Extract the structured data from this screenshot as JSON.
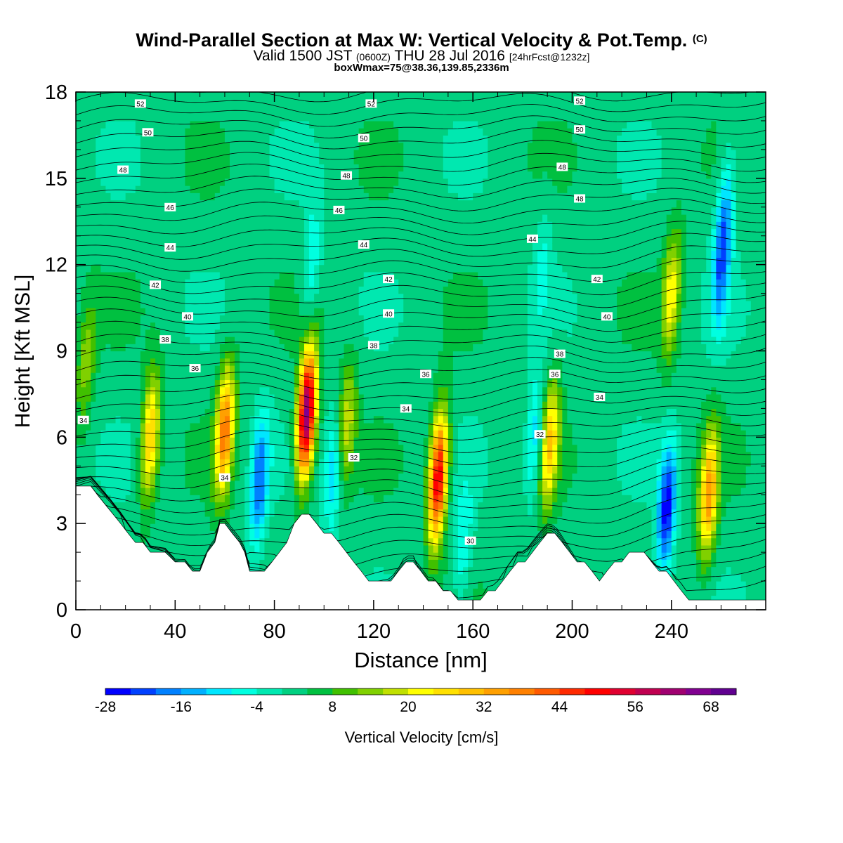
{
  "header": {
    "title": "Wind-Parallel Section at Max W: Vertical Velocity & Pot.Temp.",
    "title_mark": "(C)",
    "subtitle_pre": "Valid 1500 JST",
    "subtitle_zulu": "(0600Z)",
    "subtitle_mid": "THU 28 Jul 2016",
    "subtitle_fcst": "[24hrFcst@1232z]",
    "subtitle2": "boxWmax=75@38.36,139.85,2336m"
  },
  "chart_data": {
    "type": "heatmap",
    "title": "Wind-Parallel Section at Max W: Vertical Velocity & Pot.Temp.",
    "xlabel": "Distance [nm]",
    "ylabel": "Height [Kft MSL]",
    "xlim": [
      0,
      278
    ],
    "ylim": [
      0,
      18
    ],
    "xticks": [
      "0",
      "40",
      "80",
      "120",
      "160",
      "200",
      "240"
    ],
    "yticks": [
      "0",
      "3",
      "6",
      "9",
      "12",
      "15",
      "18"
    ],
    "colorbar": {
      "label": "Vertical Velocity [cm/s]",
      "tick_labels": [
        "-28",
        "-16",
        "-4",
        "8",
        "20",
        "32",
        "44",
        "56",
        "68"
      ],
      "levels_min": -28,
      "levels_max": 72,
      "level_step": 4,
      "colors": [
        "#0000ff",
        "#0040ff",
        "#0080ff",
        "#00b0ff",
        "#00e6ff",
        "#00ffe0",
        "#00e8b0",
        "#00d080",
        "#00c040",
        "#40c000",
        "#80d000",
        "#c0e000",
        "#ffff00",
        "#ffe000",
        "#ffc000",
        "#ffa000",
        "#ff8000",
        "#ff5a00",
        "#ff2a00",
        "#ff0000",
        "#e00030",
        "#c00050",
        "#a00070",
        "#800090",
        "#600090"
      ]
    },
    "terrain_kft": {
      "x": [
        0,
        6,
        9,
        12,
        15,
        18,
        21,
        24,
        27,
        30,
        33,
        36,
        40,
        44,
        47,
        50,
        53,
        56,
        58,
        60,
        63,
        66,
        68,
        70,
        73,
        76,
        79,
        82,
        85,
        88,
        91,
        94,
        97,
        100,
        103,
        106,
        109,
        112,
        115,
        118,
        121,
        124,
        127,
        130,
        133,
        136,
        139,
        142,
        145,
        148,
        151,
        154,
        157,
        160,
        163,
        166,
        169,
        172,
        175,
        178,
        181,
        184,
        187,
        190,
        193,
        196,
        199,
        202,
        205,
        208,
        211,
        214,
        217,
        220,
        223,
        226,
        229,
        232,
        235,
        238,
        241,
        244,
        247,
        250,
        253,
        256,
        259,
        262,
        265,
        268,
        271,
        274,
        278
      ],
      "y": [
        4.3,
        4.3,
        3.96,
        3.64,
        3.32,
        3.0,
        2.66,
        2.34,
        2.34,
        2.0,
        2.0,
        2.0,
        1.66,
        1.66,
        1.34,
        1.34,
        2.0,
        2.34,
        3.0,
        3.0,
        2.66,
        2.34,
        2.0,
        1.34,
        1.34,
        1.34,
        1.66,
        2.0,
        2.34,
        3.0,
        3.32,
        3.32,
        3.0,
        2.66,
        2.66,
        2.34,
        2.0,
        1.66,
        1.34,
        1.0,
        1.0,
        1.0,
        1.0,
        1.34,
        1.66,
        1.66,
        1.34,
        1.0,
        1.0,
        0.66,
        0.66,
        0.34,
        0.34,
        0.34,
        0.34,
        0.66,
        0.66,
        1.0,
        1.34,
        1.66,
        1.66,
        2.0,
        2.34,
        2.66,
        2.66,
        2.34,
        2.0,
        1.66,
        1.66,
        1.34,
        1.0,
        1.34,
        1.66,
        1.66,
        2.0,
        2.0,
        2.0,
        1.66,
        1.34,
        1.34,
        1.0,
        0.66,
        0.34,
        0.34,
        0.34,
        0.34,
        0.34,
        0.34,
        0.34,
        0.34,
        0.34,
        0.34,
        0.34
      ]
    },
    "vertical_velocity_features": [
      {
        "x": 30,
        "z": 6.0,
        "w_peak": 28
      },
      {
        "x": 60,
        "z": 6.3,
        "w_peak": 36
      },
      {
        "x": 74,
        "z": 4.5,
        "w_peak": -22
      },
      {
        "x": 93,
        "z": 6.8,
        "w_peak": 64
      },
      {
        "x": 104,
        "z": 4.8,
        "w_peak": -14
      },
      {
        "x": 109,
        "z": 6.5,
        "w_peak": 18
      },
      {
        "x": 146,
        "z": 4.6,
        "w_peak": 52
      },
      {
        "x": 156,
        "z": 2.2,
        "w_peak": -10
      },
      {
        "x": 185,
        "z": 6.0,
        "w_peak": -14
      },
      {
        "x": 191,
        "z": 5.8,
        "w_peak": 26
      },
      {
        "x": 238,
        "z": 3.5,
        "w_peak": -28
      },
      {
        "x": 255,
        "z": 4.0,
        "w_peak": 32
      },
      {
        "x": 240,
        "z": 11.0,
        "w_peak": 20
      },
      {
        "x": 262,
        "z": 14.0,
        "w_peak": -12
      },
      {
        "x": 260,
        "z": 12.0,
        "w_peak": -18
      },
      {
        "x": 95,
        "z": 12.0,
        "w_peak": -10
      },
      {
        "x": 188,
        "z": 12.0,
        "w_peak": -6
      },
      {
        "x": 4,
        "z": 8.5,
        "w_peak": 12
      }
    ],
    "theta_contour_labels": [
      {
        "x": 26,
        "z": 17.6,
        "text": "52"
      },
      {
        "x": 119,
        "z": 17.6,
        "text": "52"
      },
      {
        "x": 203,
        "z": 17.7,
        "text": "52"
      },
      {
        "x": 29,
        "z": 16.6,
        "text": "50"
      },
      {
        "x": 116,
        "z": 16.4,
        "text": "50"
      },
      {
        "x": 203,
        "z": 16.7,
        "text": "50"
      },
      {
        "x": 19,
        "z": 15.3,
        "text": "48"
      },
      {
        "x": 109,
        "z": 15.1,
        "text": "48"
      },
      {
        "x": 196,
        "z": 15.4,
        "text": "48"
      },
      {
        "x": 38,
        "z": 14.0,
        "text": "46"
      },
      {
        "x": 106,
        "z": 13.9,
        "text": "46"
      },
      {
        "x": 203,
        "z": 14.3,
        "text": "48"
      },
      {
        "x": 38,
        "z": 12.6,
        "text": "44"
      },
      {
        "x": 116,
        "z": 12.7,
        "text": "44"
      },
      {
        "x": 184,
        "z": 12.9,
        "text": "44"
      },
      {
        "x": 32,
        "z": 11.3,
        "text": "42"
      },
      {
        "x": 126,
        "z": 11.5,
        "text": "42"
      },
      {
        "x": 210,
        "z": 11.5,
        "text": "42"
      },
      {
        "x": 45,
        "z": 10.2,
        "text": "40"
      },
      {
        "x": 126,
        "z": 10.3,
        "text": "40"
      },
      {
        "x": 214,
        "z": 10.2,
        "text": "40"
      },
      {
        "x": 36,
        "z": 9.4,
        "text": "38"
      },
      {
        "x": 120,
        "z": 9.2,
        "text": "38"
      },
      {
        "x": 195,
        "z": 8.9,
        "text": "38"
      },
      {
        "x": 48,
        "z": 8.4,
        "text": "36"
      },
      {
        "x": 141,
        "z": 8.2,
        "text": "36"
      },
      {
        "x": 193,
        "z": 8.2,
        "text": "36"
      },
      {
        "x": 3,
        "z": 6.6,
        "text": "34"
      },
      {
        "x": 133,
        "z": 7.0,
        "text": "34"
      },
      {
        "x": 211,
        "z": 7.4,
        "text": "34"
      },
      {
        "x": 60,
        "z": 4.6,
        "text": "34"
      },
      {
        "x": 112,
        "z": 5.3,
        "text": "32"
      },
      {
        "x": 187,
        "z": 6.1,
        "text": "32"
      },
      {
        "x": 159,
        "z": 2.4,
        "text": "30"
      }
    ]
  },
  "axes": {
    "xlabel": "Distance [nm]",
    "ylabel": "Height [Kft MSL]",
    "xticks": [
      "0",
      "40",
      "80",
      "120",
      "160",
      "200",
      "240"
    ],
    "yticks": [
      "0",
      "3",
      "6",
      "9",
      "12",
      "15",
      "18"
    ]
  },
  "legend": {
    "label": "Vertical Velocity [cm/s]",
    "ticks": [
      "-28",
      "-16",
      "-4",
      "8",
      "20",
      "32",
      "44",
      "56",
      "68"
    ]
  }
}
